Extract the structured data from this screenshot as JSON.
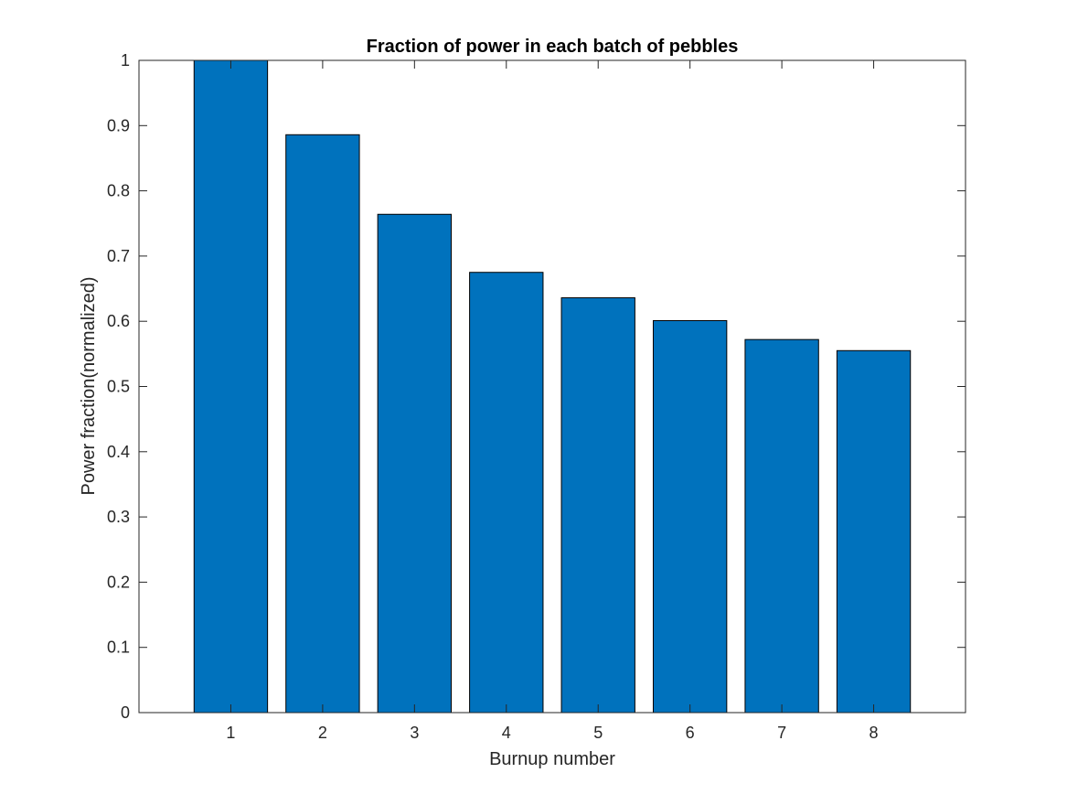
{
  "chart_data": {
    "type": "bar",
    "title": "Fraction of power in each batch of pebbles",
    "xlabel": "Burnup number",
    "ylabel": "Power fraction(normalized)",
    "categories": [
      "1",
      "2",
      "3",
      "4",
      "5",
      "6",
      "7",
      "8"
    ],
    "values": [
      1.0,
      0.886,
      0.764,
      0.675,
      0.636,
      0.601,
      0.572,
      0.555
    ],
    "xlim": [
      0,
      9
    ],
    "ylim": [
      0,
      1
    ],
    "yticks": [
      "0",
      "0.1",
      "0.2",
      "0.3",
      "0.4",
      "0.5",
      "0.6",
      "0.7",
      "0.8",
      "0.9",
      "1"
    ],
    "grid": false,
    "legend": "none",
    "bar_color": "#0072bd",
    "edge_color": "#000000"
  }
}
